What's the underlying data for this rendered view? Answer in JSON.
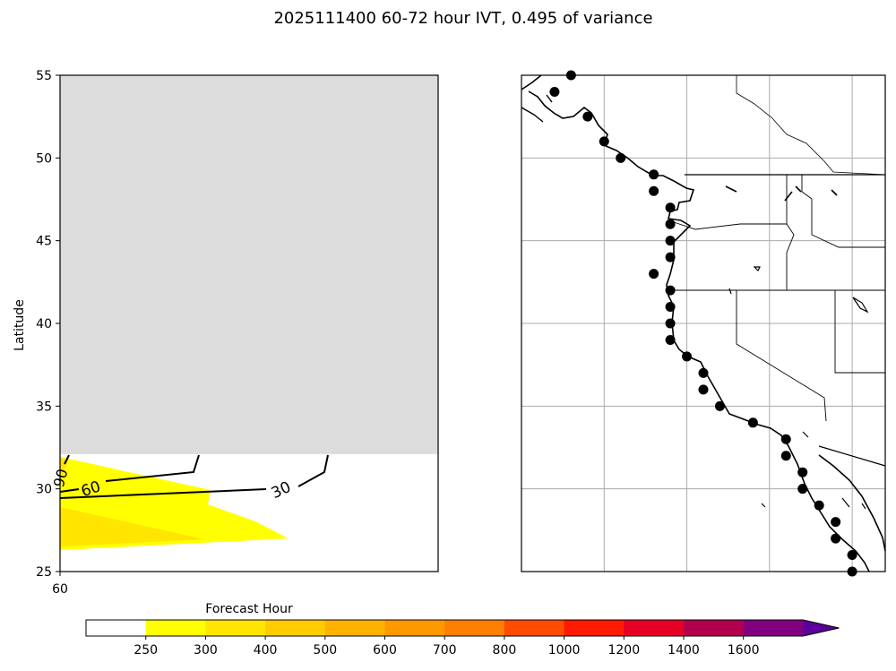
{
  "chart_data": [
    {
      "type": "heatmap",
      "title": "2025111400 60-72 hour IVT, 0.495 of variance",
      "xlabel": "Forecast Hour",
      "ylabel": "Latitude",
      "x_ticks": [
        "60"
      ],
      "y_ticks": [
        "25",
        "30",
        "35",
        "40",
        "45",
        "50",
        "55"
      ],
      "ylim": [
        25,
        55
      ],
      "missing_region": {
        "lat_from": 32.1,
        "lat_to": 55,
        "color": "#dcdcdc"
      },
      "contour_labels": [
        "30",
        "60",
        "90"
      ],
      "colorbar": {
        "levels": [
          "250",
          "300",
          "400",
          "500",
          "600",
          "700",
          "800",
          "1000",
          "1200",
          "1400",
          "1600"
        ],
        "colors": [
          "#ffffff",
          "#ffff00",
          "#ffe500",
          "#ffcc00",
          "#ffb200",
          "#ff9900",
          "#ff7f00",
          "#ff4c00",
          "#ff1a00",
          "#e60026",
          "#b3004d",
          "#800080",
          "#5c0099"
        ],
        "extend": "max"
      }
    },
    {
      "type": "scatter",
      "region": "US West Coast map",
      "grid": true,
      "points": [
        {
          "lat": 55.0,
          "lon": -132.0
        },
        {
          "lat": 54.0,
          "lon": -133.0
        },
        {
          "lat": 52.5,
          "lon": -131.0
        },
        {
          "lat": 51.0,
          "lon": -130.0
        },
        {
          "lat": 50.0,
          "lon": -129.0
        },
        {
          "lat": 49.0,
          "lon": -127.0
        },
        {
          "lat": 48.0,
          "lon": -127.0
        },
        {
          "lat": 47.0,
          "lon": -126.0
        },
        {
          "lat": 46.0,
          "lon": -126.0
        },
        {
          "lat": 45.0,
          "lon": -126.0
        },
        {
          "lat": 44.0,
          "lon": -126.0
        },
        {
          "lat": 43.0,
          "lon": -127.0
        },
        {
          "lat": 42.0,
          "lon": -126.0
        },
        {
          "lat": 41.0,
          "lon": -126.0
        },
        {
          "lat": 40.0,
          "lon": -126.0
        },
        {
          "lat": 39.0,
          "lon": -126.0
        },
        {
          "lat": 38.0,
          "lon": -125.0
        },
        {
          "lat": 37.0,
          "lon": -124.0
        },
        {
          "lat": 36.0,
          "lon": -124.0
        },
        {
          "lat": 35.0,
          "lon": -123.0
        },
        {
          "lat": 34.0,
          "lon": -121.0
        },
        {
          "lat": 33.0,
          "lon": -119.0
        },
        {
          "lat": 32.0,
          "lon": -119.0
        },
        {
          "lat": 31.0,
          "lon": -118.0
        },
        {
          "lat": 30.0,
          "lon": -118.0
        },
        {
          "lat": 29.0,
          "lon": -117.0
        },
        {
          "lat": 28.0,
          "lon": -116.0
        },
        {
          "lat": 27.0,
          "lon": -116.0
        },
        {
          "lat": 26.0,
          "lon": -115.0
        },
        {
          "lat": 25.0,
          "lon": -115.0
        }
      ]
    }
  ]
}
